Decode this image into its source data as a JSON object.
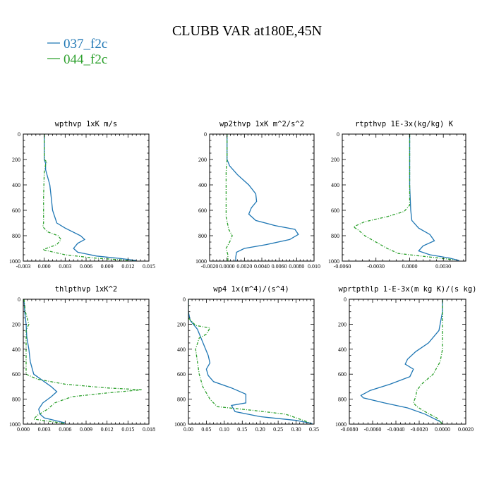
{
  "figure": {
    "title": "CLUBB VAR at180E,45N",
    "legend": [
      {
        "label": "037_f2c",
        "color": "#1f77b4"
      },
      {
        "label": "044_f2c",
        "color": "#2ca02c"
      }
    ]
  },
  "chart_data": [
    {
      "type": "line",
      "title": "wpthvp  1xK m/s",
      "xlim": [
        -0.003,
        0.015
      ],
      "xticks": [
        "-0.003",
        "0.000",
        "0.003",
        "0.006",
        "0.009",
        "0.012",
        "0.015"
      ],
      "xtick_values": [
        -0.003,
        0.0,
        0.003,
        0.006,
        0.009,
        0.012,
        0.015
      ],
      "ylim": [
        1000,
        0
      ],
      "yticks": [
        "0",
        "200",
        "400",
        "600",
        "800",
        "1000"
      ],
      "series": [
        {
          "color": "#1f77b4",
          "dashed": false,
          "points": [
            [
              0.0,
              0
            ],
            [
              0.0,
              100
            ],
            [
              0.0,
              200
            ],
            [
              0.0002,
              230
            ],
            [
              0.0002,
              280
            ],
            [
              0.0008,
              400
            ],
            [
              0.001,
              500
            ],
            [
              0.0012,
              600
            ],
            [
              0.0018,
              700
            ],
            [
              0.003,
              740
            ],
            [
              0.0052,
              800
            ],
            [
              0.0058,
              830
            ],
            [
              0.0048,
              860
            ],
            [
              0.0042,
              900
            ],
            [
              0.0048,
              930
            ],
            [
              0.0075,
              960
            ],
            [
              0.011,
              980
            ],
            [
              0.0132,
              995
            ]
          ]
        },
        {
          "color": "#2ca02c",
          "dashed": true,
          "points": [
            [
              0.0,
              0
            ],
            [
              0.0,
              100
            ],
            [
              0.0,
              200
            ],
            [
              0.0004,
              220
            ],
            [
              0.0002,
              240
            ],
            [
              0.0,
              300
            ],
            [
              -0.0001,
              500
            ],
            [
              -0.0001,
              700
            ],
            [
              -0.0002,
              730
            ],
            [
              0.0005,
              770
            ],
            [
              0.002,
              800
            ],
            [
              0.0024,
              830
            ],
            [
              0.0018,
              870
            ],
            [
              -0.0002,
              910
            ],
            [
              0.003,
              950
            ],
            [
              0.007,
              975
            ],
            [
              0.011,
              990
            ],
            [
              0.013,
              1000
            ]
          ]
        }
      ]
    },
    {
      "type": "line",
      "title": "wp2thvp  1xK m^2/s^2",
      "xlim": [
        -0.002,
        0.01
      ],
      "xticks": [
        "-0.0020",
        "0.0000",
        "0.0020",
        "0.0040",
        "0.0060",
        "0.0080",
        "0.010"
      ],
      "xtick_values": [
        -0.002,
        0.0,
        0.002,
        0.004,
        0.006,
        0.008,
        0.01
      ],
      "ylim": [
        1000,
        0
      ],
      "yticks": [
        "0",
        "200",
        "400",
        "600",
        "800",
        "1000"
      ],
      "series": [
        {
          "color": "#1f77b4",
          "dashed": false,
          "points": [
            [
              0.0,
              0
            ],
            [
              0.0,
              150
            ],
            [
              0.0,
              200
            ],
            [
              0.0003,
              250
            ],
            [
              0.0012,
              320
            ],
            [
              0.0025,
              400
            ],
            [
              0.0033,
              470
            ],
            [
              0.0034,
              530
            ],
            [
              0.0028,
              580
            ],
            [
              0.0025,
              630
            ],
            [
              0.0033,
              680
            ],
            [
              0.0055,
              720
            ],
            [
              0.0078,
              750
            ],
            [
              0.0082,
              790
            ],
            [
              0.0072,
              830
            ],
            [
              0.0045,
              870
            ],
            [
              0.002,
              900
            ],
            [
              0.0011,
              930
            ],
            [
              0.001,
              970
            ],
            [
              0.001,
              1000
            ]
          ]
        },
        {
          "color": "#2ca02c",
          "dashed": true,
          "points": [
            [
              0.0,
              0
            ],
            [
              0.0,
              100
            ],
            [
              0.0,
              200
            ],
            [
              -0.0001,
              300
            ],
            [
              -0.0001,
              500
            ],
            [
              -0.0001,
              650
            ],
            [
              0.0002,
              750
            ],
            [
              0.0006,
              800
            ],
            [
              0.0003,
              850
            ],
            [
              -0.0001,
              900
            ],
            [
              0.0001,
              950
            ],
            [
              0.0001,
              1000
            ]
          ]
        }
      ]
    },
    {
      "type": "line",
      "title": "rtpthvp  1E-3x(kg/kg) K",
      "xlim": [
        -0.006,
        0.005
      ],
      "xticks": [
        "-0.0060",
        "-0.0030",
        "0.0000",
        "0.0030"
      ],
      "xtick_values": [
        -0.006,
        -0.003,
        0.0,
        0.003
      ],
      "ylim": [
        1000,
        0
      ],
      "yticks": [
        "0",
        "200",
        "400",
        "600",
        "800",
        "1000"
      ],
      "series": [
        {
          "color": "#1f77b4",
          "dashed": false,
          "points": [
            [
              0.0,
              0
            ],
            [
              0.0,
              200
            ],
            [
              0.0,
              400
            ],
            [
              0.0001,
              600
            ],
            [
              0.0002,
              680
            ],
            [
              0.0008,
              740
            ],
            [
              0.0018,
              790
            ],
            [
              0.0022,
              840
            ],
            [
              0.0012,
              880
            ],
            [
              0.0008,
              920
            ],
            [
              0.0018,
              950
            ],
            [
              0.0035,
              975
            ],
            [
              0.0044,
              995
            ]
          ]
        },
        {
          "color": "#2ca02c",
          "dashed": true,
          "points": [
            [
              0.0,
              0
            ],
            [
              0.0,
              200
            ],
            [
              0.0,
              400
            ],
            [
              0.0,
              560
            ],
            [
              -0.0005,
              610
            ],
            [
              -0.002,
              650
            ],
            [
              -0.004,
              690
            ],
            [
              -0.005,
              730
            ],
            [
              -0.0045,
              760
            ],
            [
              -0.004,
              800
            ],
            [
              -0.003,
              850
            ],
            [
              -0.002,
              900
            ],
            [
              -0.001,
              940
            ],
            [
              0.002,
              970
            ],
            [
              0.004,
              990
            ]
          ]
        }
      ]
    },
    {
      "type": "line",
      "title": "thlpthvp  1xK^2",
      "xlim": [
        0.0,
        0.018
      ],
      "xticks": [
        "0.000",
        "0.003",
        "0.006",
        "0.009",
        "0.012",
        "0.015",
        "0.018"
      ],
      "xtick_values": [
        0.0,
        0.003,
        0.006,
        0.009,
        0.012,
        0.015,
        0.018
      ],
      "ylim": [
        1000,
        0
      ],
      "yticks": [
        "0",
        "200",
        "400",
        "600",
        "800",
        "1000"
      ],
      "series": [
        {
          "color": "#1f77b4",
          "dashed": false,
          "points": [
            [
              0.0001,
              0
            ],
            [
              0.0002,
              100
            ],
            [
              0.0004,
              200
            ],
            [
              0.0005,
              300
            ],
            [
              0.0008,
              400
            ],
            [
              0.001,
              500
            ],
            [
              0.0015,
              600
            ],
            [
              0.003,
              660
            ],
            [
              0.004,
              700
            ],
            [
              0.0048,
              740
            ],
            [
              0.004,
              780
            ],
            [
              0.0028,
              830
            ],
            [
              0.0022,
              880
            ],
            [
              0.0024,
              920
            ],
            [
              0.003,
              950
            ],
            [
              0.006,
              990
            ]
          ]
        },
        {
          "color": "#2ca02c",
          "dashed": true,
          "points": [
            [
              0.0001,
              0
            ],
            [
              0.0003,
              100
            ],
            [
              0.0008,
              200
            ],
            [
              0.0004,
              250
            ],
            [
              0.0004,
              400
            ],
            [
              0.0004,
              600
            ],
            [
              0.002,
              640
            ],
            [
              0.006,
              680
            ],
            [
              0.012,
              710
            ],
            [
              0.017,
              725
            ],
            [
              0.012,
              750
            ],
            [
              0.007,
              780
            ],
            [
              0.0045,
              830
            ],
            [
              0.0035,
              880
            ],
            [
              0.002,
              930
            ],
            [
              0.0015,
              960
            ],
            [
              0.006,
              995
            ]
          ]
        }
      ]
    },
    {
      "type": "line",
      "title": "wp4  1x(m^4)/(s^4)",
      "xlim": [
        0.0,
        0.35
      ],
      "xticks": [
        "0.00",
        "0.05",
        "0.10",
        "0.15",
        "0.20",
        "0.25",
        "0.30",
        "0.35"
      ],
      "xtick_values": [
        0.0,
        0.05,
        0.1,
        0.15,
        0.2,
        0.25,
        0.3,
        0.35
      ],
      "ylim": [
        1000,
        0
      ],
      "yticks": [
        "0",
        "200",
        "400",
        "600",
        "800",
        "1000"
      ],
      "series": [
        {
          "color": "#1f77b4",
          "dashed": false,
          "points": [
            [
              0.0,
              0
            ],
            [
              0.0,
              100
            ],
            [
              0.005,
              170
            ],
            [
              0.025,
              240
            ],
            [
              0.035,
              310
            ],
            [
              0.045,
              380
            ],
            [
              0.055,
              450
            ],
            [
              0.06,
              510
            ],
            [
              0.05,
              560
            ],
            [
              0.055,
              610
            ],
            [
              0.07,
              660
            ],
            [
              0.12,
              710
            ],
            [
              0.16,
              760
            ],
            [
              0.16,
              830
            ],
            [
              0.12,
              850
            ],
            [
              0.13,
              900
            ],
            [
              0.2,
              940
            ],
            [
              0.3,
              970
            ],
            [
              0.345,
              995
            ]
          ]
        },
        {
          "color": "#2ca02c",
          "dashed": true,
          "points": [
            [
              0.0,
              0
            ],
            [
              0.0,
              150
            ],
            [
              0.02,
              210
            ],
            [
              0.06,
              230
            ],
            [
              0.05,
              280
            ],
            [
              0.03,
              310
            ],
            [
              0.02,
              400
            ],
            [
              0.025,
              500
            ],
            [
              0.03,
              600
            ],
            [
              0.04,
              700
            ],
            [
              0.06,
              800
            ],
            [
              0.08,
              860
            ],
            [
              0.18,
              890
            ],
            [
              0.27,
              920
            ],
            [
              0.3,
              950
            ],
            [
              0.33,
              980
            ],
            [
              0.34,
              995
            ]
          ]
        }
      ]
    },
    {
      "type": "line",
      "title": "wprtpthlp  1-E-3x(m kg K)/(s kg)",
      "xlim": [
        -0.008,
        0.002
      ],
      "xticks": [
        "-0.0080",
        "-0.0060",
        "-0.0040",
        "-0.0020",
        "0.0000",
        "0.0020"
      ],
      "xtick_values": [
        -0.008,
        -0.006,
        -0.004,
        -0.002,
        0.0,
        0.002
      ],
      "ylim": [
        1000,
        0
      ],
      "yticks": [
        "0",
        "200",
        "400",
        "600",
        "800",
        "1000"
      ],
      "series": [
        {
          "color": "#1f77b4",
          "dashed": false,
          "points": [
            [
              0.0,
              0
            ],
            [
              0.0,
              100
            ],
            [
              -0.0003,
              250
            ],
            [
              -0.0012,
              350
            ],
            [
              -0.0023,
              420
            ],
            [
              -0.003,
              480
            ],
            [
              -0.0032,
              520
            ],
            [
              -0.0025,
              560
            ],
            [
              -0.0028,
              620
            ],
            [
              -0.0045,
              680
            ],
            [
              -0.0062,
              730
            ],
            [
              -0.007,
              770
            ],
            [
              -0.0068,
              790
            ],
            [
              -0.005,
              830
            ],
            [
              -0.003,
              870
            ],
            [
              -0.0015,
              920
            ],
            [
              -0.0002,
              980
            ],
            [
              0.0,
              1000
            ]
          ]
        },
        {
          "color": "#2ca02c",
          "dashed": true,
          "points": [
            [
              0.0,
              0
            ],
            [
              0.0,
              200
            ],
            [
              0.0,
              400
            ],
            [
              -0.0002,
              500
            ],
            [
              -0.0008,
              600
            ],
            [
              -0.0018,
              680
            ],
            [
              -0.0022,
              730
            ],
            [
              -0.0023,
              780
            ],
            [
              -0.0025,
              830
            ],
            [
              -0.0022,
              860
            ],
            [
              -0.0015,
              900
            ],
            [
              -0.0005,
              950
            ],
            [
              0.0,
              1000
            ]
          ]
        }
      ]
    }
  ]
}
